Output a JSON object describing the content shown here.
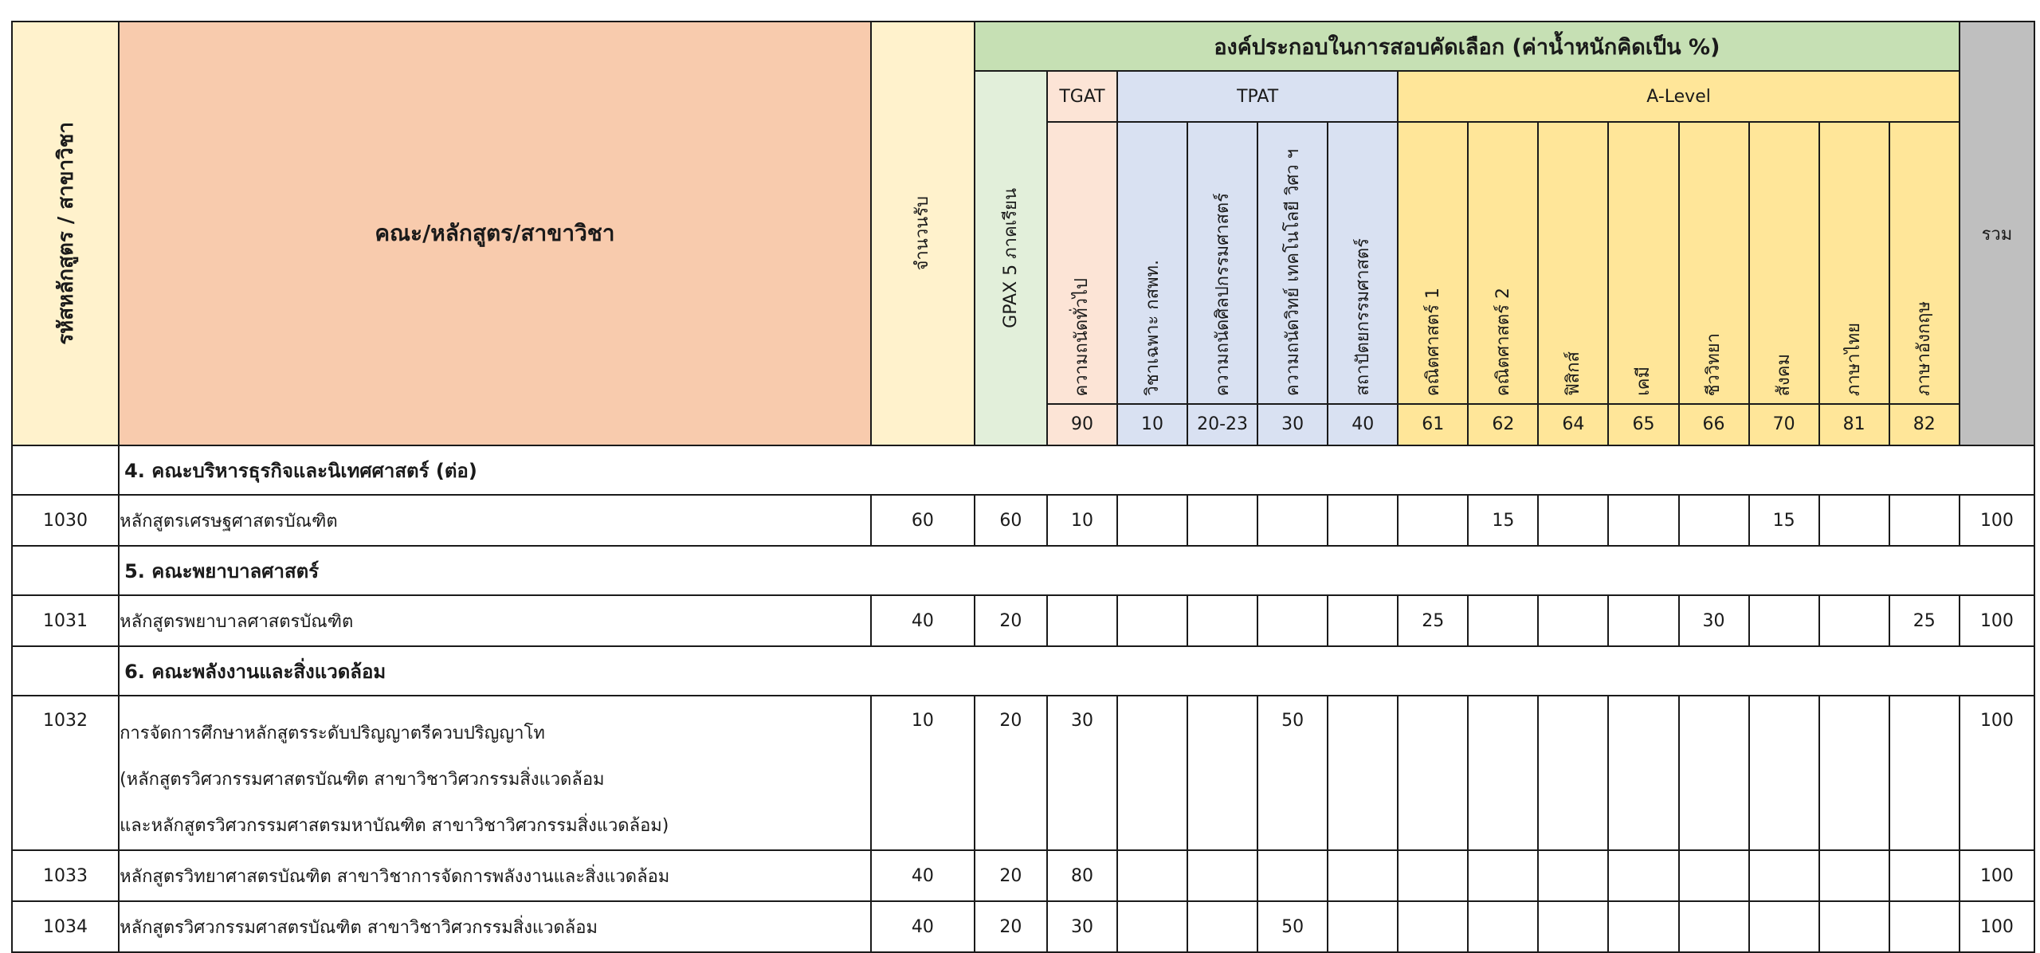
{
  "header": {
    "code_label": "รหัสหลักสูตร / สาขาวิชา",
    "program_label": "คณะ/หลักสูตร/สาขาวิชา",
    "seats_label": "จำนวนรับ",
    "components_title": "องค์ประกอบในการสอบคัดเลือก (ค่าน้ำหนักคิดเป็น %)",
    "gpax_label": "GPAX 5 ภาคเรียน",
    "tgat_label": "TGAT",
    "tpat_label": "TPAT",
    "alevel_label": "A-Level",
    "total_label": "รวม",
    "subjects": [
      {
        "label": "ความถนัดทั่วไป",
        "code": "90"
      },
      {
        "label": "วิชาเฉพาะ กสพท.",
        "code": "10"
      },
      {
        "label": "ความถนัดศิลปกรรมศาสตร์",
        "code": "20-23"
      },
      {
        "label": "ความถนัดวิทย์ เทคโนโลยี วิศว ฯ",
        "code": "30"
      },
      {
        "label": "สถาปัตยกรรมศาสตร์",
        "code": "40"
      },
      {
        "label": "คณิตศาสตร์ 1",
        "code": "61"
      },
      {
        "label": "คณิตศาสตร์ 2",
        "code": "62"
      },
      {
        "label": "ฟิสิกส์",
        "code": "64"
      },
      {
        "label": "เคมี",
        "code": "65"
      },
      {
        "label": "ชีววิทยา",
        "code": "66"
      },
      {
        "label": "สังคม",
        "code": "70"
      },
      {
        "label": "ภาษาไทย",
        "code": "81"
      },
      {
        "label": "ภาษาอังกฤษ",
        "code": "82"
      }
    ]
  },
  "sections": [
    {
      "title": "4. คณะบริหารธุรกิจและนิเทศศาสตร์ (ต่อ)",
      "rows": [
        {
          "code": "1030",
          "lines": [
            "หลักสูตรเศรษฐศาสตรบัณฑิต"
          ],
          "seats": "60",
          "gpax": "60",
          "scores": [
            "10",
            "",
            "",
            "",
            "",
            "",
            "15",
            "",
            "",
            "",
            "15",
            "",
            ""
          ],
          "total": "100"
        }
      ]
    },
    {
      "title": "5. คณะพยาบาลศาสตร์",
      "rows": [
        {
          "code": "1031",
          "lines": [
            "หลักสูตรพยาบาลศาสตรบัณฑิต"
          ],
          "seats": "40",
          "gpax": "20",
          "scores": [
            "",
            "",
            "",
            "",
            "",
            "25",
            "",
            "",
            "",
            "30",
            "",
            "",
            "25"
          ],
          "total": "100"
        }
      ]
    },
    {
      "title": "6. คณะพลังงานและสิ่งแวดล้อม",
      "rows": [
        {
          "code": "1032",
          "lines": [
            "การจัดการศึกษาหลักสูตรระดับปริญญาตรีควบปริญญาโท",
            "(หลักสูตรวิศวกรรมศาสตรบัณฑิต สาขาวิชาวิศวกรรมสิ่งแวดล้อม",
            "และหลักสูตรวิศวกรรมศาสตรมหาบัณฑิต สาขาวิชาวิศวกรรมสิ่งแวดล้อม)"
          ],
          "seats": "10",
          "gpax": "20",
          "scores": [
            "30",
            "",
            "",
            "50",
            "",
            "",
            "",
            "",
            "",
            "",
            "",
            "",
            ""
          ],
          "total": "100"
        },
        {
          "code": "1033",
          "lines": [
            "หลักสูตรวิทยาศาสตรบัณฑิต สาขาวิชาการจัดการพลังงานและสิ่งแวดล้อม"
          ],
          "seats": "40",
          "gpax": "20",
          "scores": [
            "80",
            "",
            "",
            "",
            "",
            "",
            "",
            "",
            "",
            "",
            "",
            "",
            ""
          ],
          "total": "100"
        },
        {
          "code": "1034",
          "lines": [
            "หลักสูตรวิศวกรรมศาสตรบัณฑิต สาขาวิชาวิศวกรรมสิ่งแวดล้อม"
          ],
          "seats": "40",
          "gpax": "20",
          "scores": [
            "30",
            "",
            "",
            "50",
            "",
            "",
            "",
            "",
            "",
            "",
            "",
            "",
            ""
          ],
          "total": "100"
        }
      ]
    }
  ]
}
